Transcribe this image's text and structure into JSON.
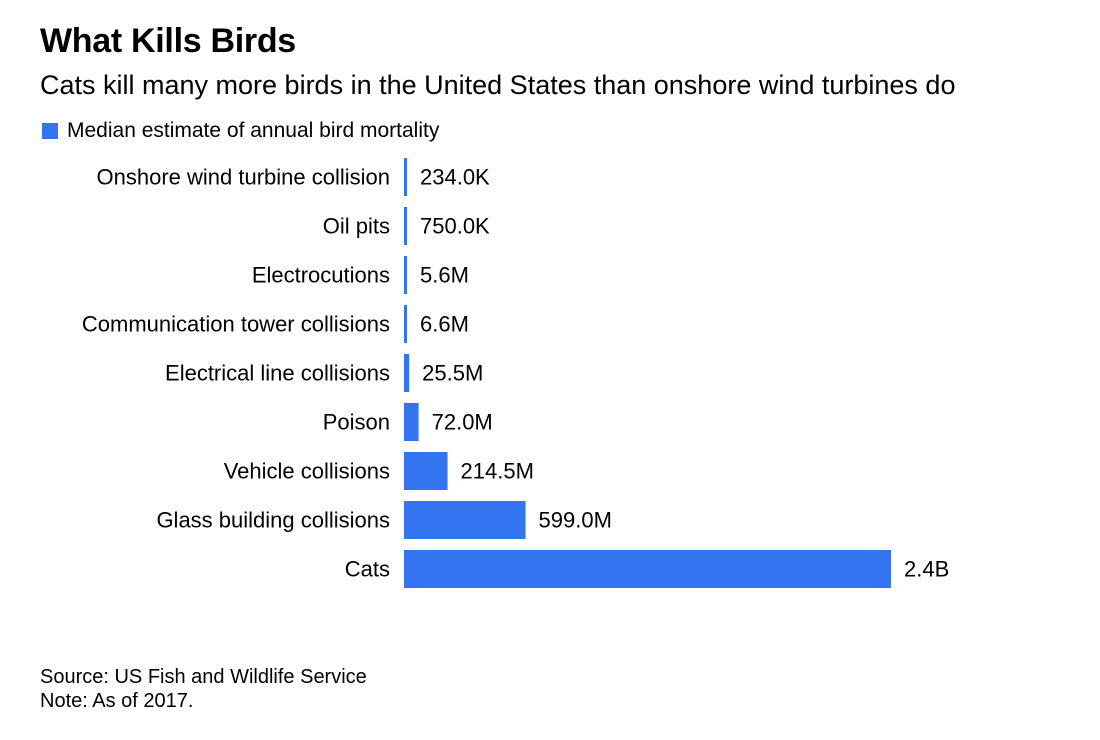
{
  "title": "What Kills Birds",
  "subtitle": "Cats kill many more birds in the United States than onshore wind turbines do",
  "legend": {
    "label": "Median estimate of annual bird mortality"
  },
  "colors": {
    "bar": "#3375F0",
    "text": "#000000",
    "background": "#FFFFFF"
  },
  "chart_data": {
    "type": "bar",
    "orientation": "horizontal",
    "title": "What Kills Birds",
    "subtitle": "Cats kill many more birds in the United States than onshore wind turbines do",
    "xlabel": "",
    "ylabel": "",
    "grid": false,
    "legend_position": "top-left",
    "categories": [
      "Onshore wind turbine collision",
      "Oil pits",
      "Electrocutions",
      "Communication tower collisions",
      "Electrical line collisions",
      "Poison",
      "Vehicle collisions",
      "Glass building collisions",
      "Cats"
    ],
    "series": [
      {
        "name": "Median estimate of annual bird mortality",
        "values": [
          234000,
          750000,
          5600000,
          6600000,
          25500000,
          72000000,
          214500000,
          599000000,
          2400000000
        ]
      }
    ],
    "value_labels": [
      "234.0K",
      "750.0K",
      "5.6M",
      "6.6M",
      "25.5M",
      "72.0M",
      "214.5M",
      "599.0M",
      "2.4B"
    ],
    "xlim": [
      0,
      2400000000
    ]
  },
  "footer": {
    "source": "Source: US Fish and Wildlife Service",
    "note": "Note: As of 2017."
  }
}
